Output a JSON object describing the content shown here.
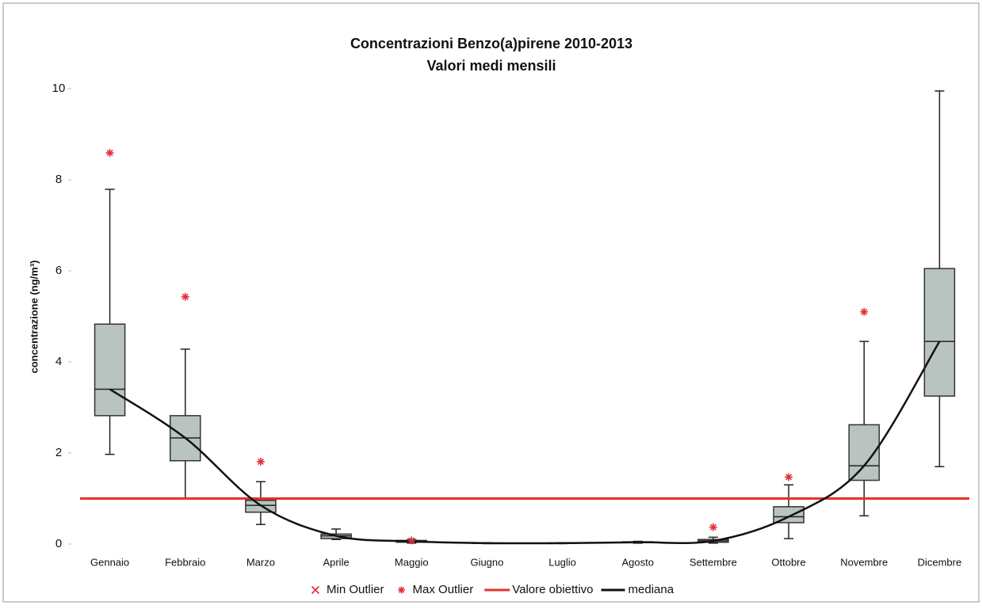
{
  "chart_data": {
    "type": "box",
    "title": "Concentrazioni Benzo(a)pirene 2010-2013",
    "subtitle": "Valori medi mensili",
    "y_label": "concentrazione (ng/m³)",
    "categories": [
      "Gennaio",
      "Febbraio",
      "Marzo",
      "Aprile",
      "Maggio",
      "Giugno",
      "Luglio",
      "Agosto",
      "Settembre",
      "Ottobre",
      "Novembre",
      "Dicembre"
    ],
    "min": [
      1.97,
      1.0,
      0.43,
      0.1,
      0.02,
      0.01,
      0.01,
      0.02,
      0.02,
      0.12,
      0.62,
      1.7
    ],
    "q1": [
      2.82,
      1.83,
      0.7,
      0.12,
      0.04,
      0.015,
      0.015,
      0.03,
      0.04,
      0.47,
      1.4,
      3.25
    ],
    "median": [
      3.4,
      2.33,
      0.85,
      0.18,
      0.06,
      0.02,
      0.02,
      0.04,
      0.07,
      0.6,
      1.72,
      4.45
    ],
    "q3": [
      4.83,
      2.82,
      0.96,
      0.22,
      0.08,
      0.025,
      0.025,
      0.05,
      0.1,
      0.82,
      2.62,
      6.05
    ],
    "max": [
      7.79,
      4.28,
      1.37,
      0.33,
      0.1,
      0.03,
      0.03,
      0.06,
      0.15,
      1.3,
      4.45,
      9.95
    ],
    "box_color": "#b9c3bf",
    "series": [
      {
        "name": "Min Outlier",
        "color": "#e0303a",
        "marker": "x",
        "values": [
          null,
          null,
          null,
          null,
          null,
          null,
          null,
          null,
          null,
          null,
          null,
          null
        ]
      },
      {
        "name": "Max Outlier",
        "color": "#e0303a",
        "marker": "star",
        "values": [
          8.59,
          5.43,
          1.81,
          null,
          0.08,
          null,
          null,
          null,
          0.37,
          1.47,
          5.1,
          null
        ]
      }
    ],
    "reference_line": {
      "name": "Valore obiettivo",
      "value": 1,
      "color": "#e8302a"
    },
    "median_line": {
      "name": "mediana",
      "color": "#111111"
    },
    "ylim": [
      0,
      10
    ],
    "yticks": [
      0,
      2,
      4,
      6,
      8,
      10
    ]
  }
}
